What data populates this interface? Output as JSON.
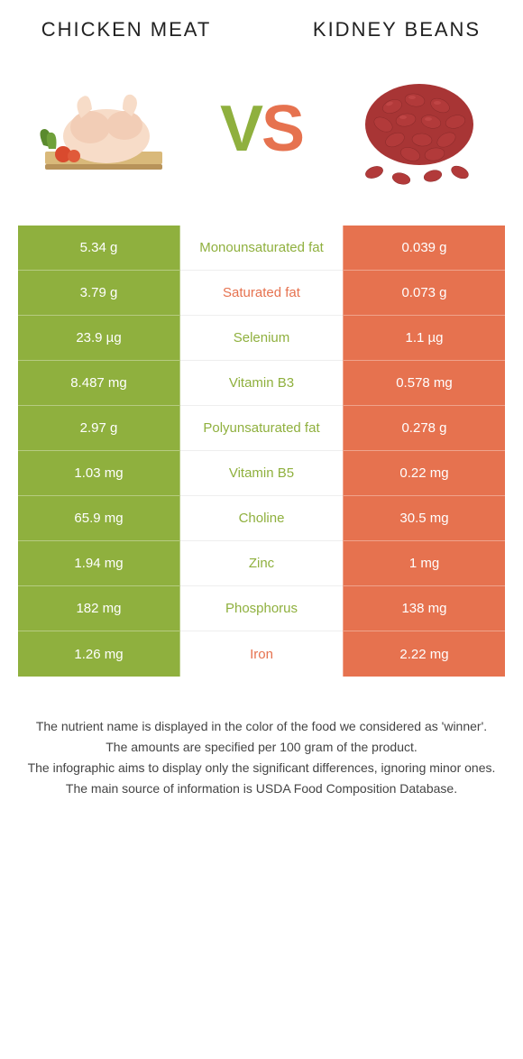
{
  "colors": {
    "left": "#8fb03e",
    "right": "#e6724f",
    "left_text": "#8fb03e",
    "right_text": "#e6724f",
    "white": "#ffffff",
    "row_border": "#eeeeee"
  },
  "header": {
    "left_title": "CHICKEN MEAT",
    "right_title": "KIDNEY BEANS",
    "vs_v": "V",
    "vs_s": "S"
  },
  "rows": [
    {
      "label": "Monounsaturated fat",
      "left": "5.34 g",
      "right": "0.039 g",
      "winner": "left"
    },
    {
      "label": "Saturated fat",
      "left": "3.79 g",
      "right": "0.073 g",
      "winner": "right"
    },
    {
      "label": "Selenium",
      "left": "23.9 µg",
      "right": "1.1 µg",
      "winner": "left"
    },
    {
      "label": "Vitamin B3",
      "left": "8.487 mg",
      "right": "0.578 mg",
      "winner": "left"
    },
    {
      "label": "Polyunsaturated fat",
      "left": "2.97 g",
      "right": "0.278 g",
      "winner": "left"
    },
    {
      "label": "Vitamin B5",
      "left": "1.03 mg",
      "right": "0.22 mg",
      "winner": "left"
    },
    {
      "label": "Choline",
      "left": "65.9 mg",
      "right": "30.5 mg",
      "winner": "left"
    },
    {
      "label": "Zinc",
      "left": "1.94 mg",
      "right": "1 mg",
      "winner": "left"
    },
    {
      "label": "Phosphorus",
      "left": "182 mg",
      "right": "138 mg",
      "winner": "left"
    },
    {
      "label": "Iron",
      "left": "1.26 mg",
      "right": "2.22 mg",
      "winner": "right"
    }
  ],
  "footer": {
    "line1": "The nutrient name is displayed in the color of the food we considered as 'winner'.",
    "line2": "The amounts are specified per 100 gram of the product.",
    "line3": "The infographic aims to display only the significant differences, ignoring minor ones.",
    "line4": "The main source of information is USDA Food Composition Database."
  }
}
